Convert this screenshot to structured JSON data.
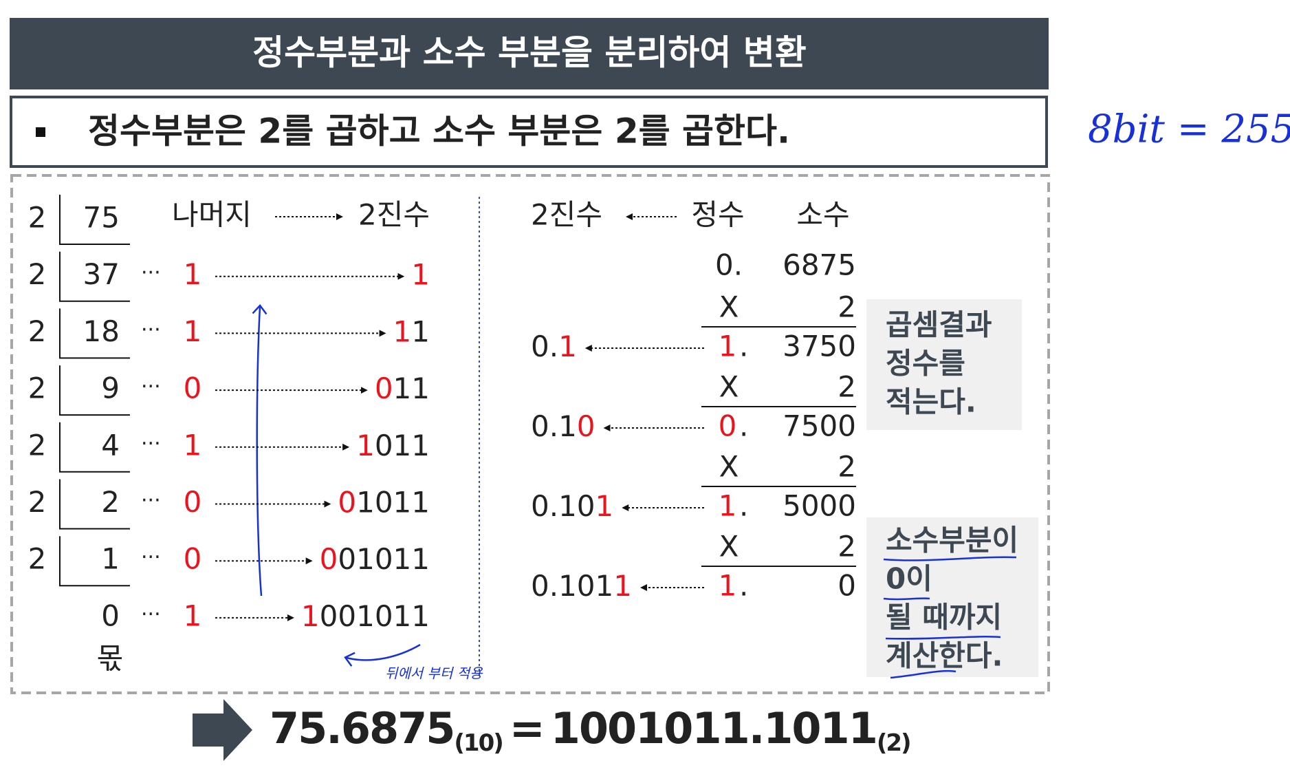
{
  "header": {
    "title": "정수부분과 소수 부분을 분리하여 변환"
  },
  "subtitle": "정수부분은 2를 곱하고  소수 부분은 2를 곱한다.",
  "integer_part": {
    "headers": {
      "remainder": "나머지",
      "binary": "2진수"
    },
    "rows": [
      {
        "divisor": "2",
        "dividend": "75"
      },
      {
        "divisor": "2",
        "dividend": "37",
        "remainder": "1",
        "binary_new": "1"
      },
      {
        "divisor": "2",
        "dividend": "18",
        "remainder": "1",
        "binary_new": "1",
        "binary_rest": "1"
      },
      {
        "divisor": "2",
        "dividend": "9",
        "remainder": "0",
        "binary_new": "0",
        "binary_rest": "11"
      },
      {
        "divisor": "2",
        "dividend": "4",
        "remainder": "1",
        "binary_new": "1",
        "binary_rest": "011"
      },
      {
        "divisor": "2",
        "dividend": "2",
        "remainder": "0",
        "binary_new": "0",
        "binary_rest": "1011"
      },
      {
        "divisor": "2",
        "dividend": "1",
        "remainder": "0",
        "binary_new": "0",
        "binary_rest": "01011"
      },
      {
        "dividend": "0",
        "remainder": "1",
        "binary_new": "1",
        "binary_rest": "001011"
      }
    ],
    "quotient_label": "몫"
  },
  "fraction_part": {
    "headers": {
      "binary": "2진수",
      "integer": "정수",
      "fraction": "소수"
    },
    "start": {
      "integer": "0.",
      "fraction": "6875"
    },
    "steps": [
      {
        "op": "X",
        "factor": "2",
        "integer": "1",
        "dot": ".",
        "fraction": "3750",
        "binary_prev": "0.",
        "binary_new": "1"
      },
      {
        "op": "X",
        "factor": "2",
        "integer": "0",
        "dot": ".",
        "fraction": "7500",
        "binary_prev": "0.1",
        "binary_new": "0"
      },
      {
        "op": "X",
        "factor": "2",
        "integer": "1",
        "dot": ".",
        "fraction": "5000",
        "binary_prev": "0.10",
        "binary_new": "1"
      },
      {
        "op": "X",
        "factor": "2",
        "integer": "1",
        "dot": ".",
        "fraction": "0",
        "binary_prev": "0.101",
        "binary_new": "1"
      }
    ]
  },
  "notes": [
    [
      "곱셈결과",
      "정수를",
      "적는다."
    ],
    [
      "소수부분이",
      "0이",
      "될 때까지",
      "계산한다."
    ]
  ],
  "result": {
    "decimal": "75.6875",
    "decimal_base": "(10)",
    "equals": "=",
    "binary": "1001011.1011",
    "binary_base": "(2)"
  },
  "handwriting": {
    "bit_note": "8bit = 255",
    "order_note": "뒤에서 부터 적용"
  }
}
